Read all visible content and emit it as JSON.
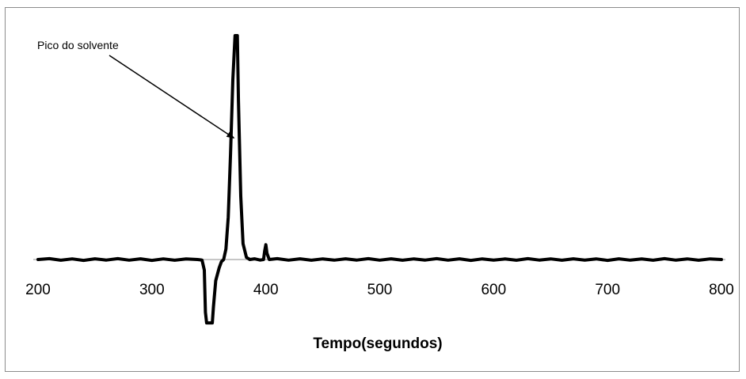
{
  "chart_data": {
    "type": "line",
    "title": "",
    "xlabel": "Tempo(segundos)",
    "ylabel": "",
    "xlim": [
      200,
      800
    ],
    "ylim": [
      -60,
      212
    ],
    "x_ticks": [
      200,
      300,
      400,
      500,
      600,
      700,
      800
    ],
    "y_axis_visible": false,
    "grid": false,
    "legend": "none",
    "line_color": "#000000",
    "annotations": [
      {
        "text": "Pico do solvente",
        "points_to": {
          "x": 372,
          "y": 115
        }
      }
    ],
    "series": [
      {
        "points": [
          [
            200,
            0
          ],
          [
            210,
            0.8
          ],
          [
            220,
            -0.7
          ],
          [
            230,
            0.6
          ],
          [
            240,
            -0.8
          ],
          [
            250,
            0.7
          ],
          [
            260,
            -0.5
          ],
          [
            270,
            0.8
          ],
          [
            280,
            -0.6
          ],
          [
            290,
            0.7
          ],
          [
            300,
            -0.8
          ],
          [
            310,
            0.6
          ],
          [
            320,
            -0.7
          ],
          [
            330,
            0.5
          ],
          [
            340,
            0
          ],
          [
            344,
            -0.5
          ],
          [
            346,
            -10
          ],
          [
            347,
            -50
          ],
          [
            348,
            -60
          ],
          [
            353,
            -60
          ],
          [
            354,
            -45
          ],
          [
            356,
            -20
          ],
          [
            359,
            -8
          ],
          [
            361,
            -2
          ],
          [
            363,
            0
          ],
          [
            365,
            10
          ],
          [
            367,
            40
          ],
          [
            369,
            100
          ],
          [
            371,
            170
          ],
          [
            373,
            212
          ],
          [
            375,
            212
          ],
          [
            376,
            150
          ],
          [
            378,
            60
          ],
          [
            380,
            15
          ],
          [
            383,
            2
          ],
          [
            386,
            0
          ],
          [
            390,
            0.7
          ],
          [
            395,
            -0.5
          ],
          [
            398,
            0
          ],
          [
            399,
            8
          ],
          [
            400,
            14
          ],
          [
            401,
            6
          ],
          [
            403,
            0
          ],
          [
            410,
            0.8
          ],
          [
            420,
            -0.6
          ],
          [
            430,
            0.7
          ],
          [
            440,
            -0.7
          ],
          [
            450,
            0.6
          ],
          [
            460,
            -0.6
          ],
          [
            470,
            0.7
          ],
          [
            480,
            -0.5
          ],
          [
            490,
            0.8
          ],
          [
            500,
            -0.6
          ],
          [
            510,
            0.7
          ],
          [
            520,
            -0.7
          ],
          [
            530,
            0.6
          ],
          [
            540,
            -0.5
          ],
          [
            550,
            0.8
          ],
          [
            560,
            -0.6
          ],
          [
            570,
            0.7
          ],
          [
            580,
            -0.8
          ],
          [
            590,
            0.6
          ],
          [
            600,
            -0.6
          ],
          [
            610,
            0.5
          ],
          [
            620,
            -0.7
          ],
          [
            630,
            0.8
          ],
          [
            640,
            -0.5
          ],
          [
            650,
            0.6
          ],
          [
            660,
            -0.7
          ],
          [
            670,
            0.7
          ],
          [
            680,
            -0.5
          ],
          [
            690,
            0.6
          ],
          [
            700,
            -0.8
          ],
          [
            710,
            0.7
          ],
          [
            720,
            -0.6
          ],
          [
            730,
            0.5
          ],
          [
            740,
            -0.7
          ],
          [
            750,
            0.8
          ],
          [
            760,
            -0.6
          ],
          [
            770,
            0.6
          ],
          [
            780,
            -0.7
          ],
          [
            790,
            0.6
          ],
          [
            800,
            0
          ]
        ]
      }
    ]
  }
}
